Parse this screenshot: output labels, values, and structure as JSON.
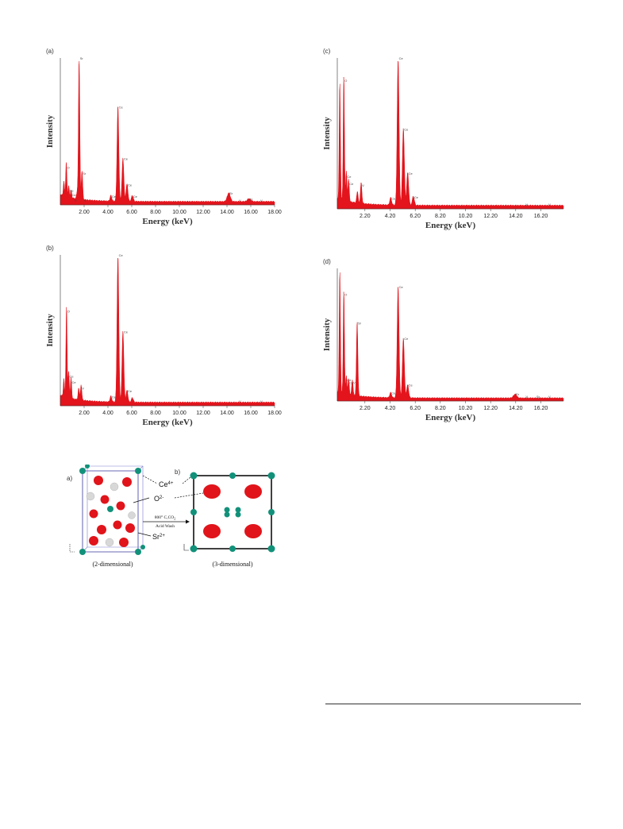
{
  "figure": {
    "chart_data": [
      {
        "type": "area",
        "panel_label": "(a)",
        "xlabel": "Energy (keV)",
        "ylabel": "Intensity",
        "xlim": [
          0,
          18
        ],
        "xticks": [
          "2.00",
          "4.00",
          "6.00",
          "8.00",
          "10.00",
          "12.00",
          "14.00",
          "16.00",
          "18.00"
        ],
        "xtick_values": [
          2,
          4,
          6,
          8,
          10,
          12,
          14,
          16,
          18
        ],
        "peaks": [
          {
            "e": 0.3,
            "h": 0.1,
            "label": ""
          },
          {
            "e": 0.5,
            "h": 0.24,
            "label": "O"
          },
          {
            "e": 0.7,
            "h": 0.08,
            "label": "Ce"
          },
          {
            "e": 0.9,
            "h": 0.05,
            "label": "Ce"
          },
          {
            "e": 1.58,
            "h": 1.0,
            "label": "Sr"
          },
          {
            "e": 1.82,
            "h": 0.2,
            "label": "Sr"
          },
          {
            "e": 1.42,
            "h": 0.05,
            "label": ""
          },
          {
            "e": 4.25,
            "h": 0.04,
            "label": "Ce"
          },
          {
            "e": 4.84,
            "h": 0.66,
            "label": "Ce"
          },
          {
            "e": 5.26,
            "h": 0.3,
            "label": "Ce"
          },
          {
            "e": 5.6,
            "h": 0.12,
            "label": "Ce"
          },
          {
            "e": 6.05,
            "h": 0.04,
            "label": "Ce"
          },
          {
            "e": 14.15,
            "h": 0.06,
            "label": "Sr"
          },
          {
            "e": 15.85,
            "h": 0.02,
            "label": "Sr"
          }
        ],
        "markers": [
          {
            "e": 1.2,
            "label": "V"
          },
          {
            "e": 2.0,
            "label": "V"
          },
          {
            "e": 15.0,
            "label": "V"
          },
          {
            "e": 16.8,
            "label": "V"
          }
        ],
        "background": 0.02
      },
      {
        "type": "area",
        "panel_label": "(b)",
        "xlabel": "Energy (keV)",
        "ylabel": "Intensity",
        "xlim": [
          0,
          18
        ],
        "xticks": [
          "2.00",
          "4.00",
          "6.00",
          "8.00",
          "10.00",
          "12.00",
          "14.00",
          "16.00",
          "18.00"
        ],
        "xtick_values": [
          2,
          4,
          6,
          8,
          10,
          12,
          14,
          16,
          18
        ],
        "peaks": [
          {
            "e": 0.3,
            "h": 0.12,
            "label": ""
          },
          {
            "e": 0.52,
            "h": 0.62,
            "label": "O"
          },
          {
            "e": 0.7,
            "h": 0.18,
            "label": "Ce"
          },
          {
            "e": 0.9,
            "h": 0.14,
            "label": "Ce"
          },
          {
            "e": 1.55,
            "h": 0.08,
            "label": ""
          },
          {
            "e": 1.75,
            "h": 0.1,
            "label": "V"
          },
          {
            "e": 4.25,
            "h": 0.04,
            "label": "Ce"
          },
          {
            "e": 4.84,
            "h": 1.0,
            "label": "Ce"
          },
          {
            "e": 5.26,
            "h": 0.48,
            "label": "Ce"
          },
          {
            "e": 5.6,
            "h": 0.08,
            "label": "Ce"
          },
          {
            "e": 6.05,
            "h": 0.03,
            "label": ""
          }
        ],
        "markers": [
          {
            "e": 15.0,
            "label": "V"
          },
          {
            "e": 16.8,
            "label": "V"
          }
        ],
        "background": 0.02
      },
      {
        "type": "area",
        "panel_label": "(c)",
        "xlabel": "Energy (keV)",
        "ylabel": "Intensity",
        "xlim": [
          0,
          18
        ],
        "xticks": [
          "2.20",
          "4.20",
          "6.20",
          "8.20",
          "10.20",
          "12.20",
          "14.20",
          "16.20"
        ],
        "xtick_values": [
          2.2,
          4.2,
          6.2,
          8.2,
          10.2,
          12.2,
          14.2,
          16.2
        ],
        "peaks": [
          {
            "e": 0.2,
            "h": 0.8,
            "label": ""
          },
          {
            "e": 0.52,
            "h": 0.85,
            "label": "O"
          },
          {
            "e": 0.72,
            "h": 0.2,
            "label": "Ce"
          },
          {
            "e": 0.9,
            "h": 0.15,
            "label": "Ce"
          },
          {
            "e": 1.6,
            "h": 0.08,
            "label": ""
          },
          {
            "e": 1.9,
            "h": 0.14,
            "label": "V"
          },
          {
            "e": 4.25,
            "h": 0.05,
            "label": "Ce"
          },
          {
            "e": 4.84,
            "h": 1.0,
            "label": "Ce"
          },
          {
            "e": 5.26,
            "h": 0.52,
            "label": "Ce"
          },
          {
            "e": 5.6,
            "h": 0.22,
            "label": "Ce"
          },
          {
            "e": 6.05,
            "h": 0.06,
            "label": "Ce"
          }
        ],
        "markers": [
          {
            "e": 15.0,
            "label": "V"
          },
          {
            "e": 16.8,
            "label": "V"
          }
        ],
        "background": 0.02
      },
      {
        "type": "area",
        "panel_label": "(d)",
        "xlabel": "Energy (keV)",
        "ylabel": "Intensity",
        "xlim": [
          0,
          18
        ],
        "xticks": [
          "2.20",
          "4.20",
          "6.20",
          "8.20",
          "10.20",
          "12.20",
          "14.20",
          "16.20"
        ],
        "xtick_values": [
          2.2,
          4.2,
          6.2,
          8.2,
          10.2,
          12.2,
          14.2,
          16.2
        ],
        "peaks": [
          {
            "e": 0.2,
            "h": 0.95,
            "label": ""
          },
          {
            "e": 0.52,
            "h": 0.8,
            "label": "O"
          },
          {
            "e": 0.72,
            "h": 0.14,
            "label": "Ce"
          },
          {
            "e": 0.9,
            "h": 0.12,
            "label": "Ce"
          },
          {
            "e": 1.58,
            "h": 0.58,
            "label": "Sr"
          },
          {
            "e": 1.2,
            "h": 0.12,
            "label": "V"
          },
          {
            "e": 4.25,
            "h": 0.04,
            "label": "Ce"
          },
          {
            "e": 4.84,
            "h": 0.86,
            "label": "Ce"
          },
          {
            "e": 5.26,
            "h": 0.46,
            "label": "Ce"
          },
          {
            "e": 5.6,
            "h": 0.1,
            "label": "Ce"
          },
          {
            "e": 14.15,
            "h": 0.03,
            "label": "Sr"
          }
        ],
        "markers": [
          {
            "e": 15.0,
            "label": "V"
          },
          {
            "e": 15.85,
            "label": "Sr"
          },
          {
            "e": 16.8,
            "label": "V"
          }
        ],
        "background": 0.02
      }
    ],
    "colors": {
      "spectrum": "#e3141c",
      "axis": "#333333",
      "o_atom": "#e0141a",
      "ce_atom": "#12917a",
      "sr_atom": "#d8d8d8"
    }
  },
  "crystal": {
    "panel_a": "a)",
    "panel_b": "b)",
    "ce_label": "Ce",
    "ce_charge": "4+",
    "o_label": "O",
    "o_charge": "2-",
    "sr_label": "Sr",
    "sr_charge": "2+",
    "arrow_top": "800° C,CO",
    "arrow_top_sub": "2",
    "arrow_bottom": "Acid Wash",
    "caption_left": "(2-dimensional)",
    "caption_right": "(3-dimensional)"
  }
}
